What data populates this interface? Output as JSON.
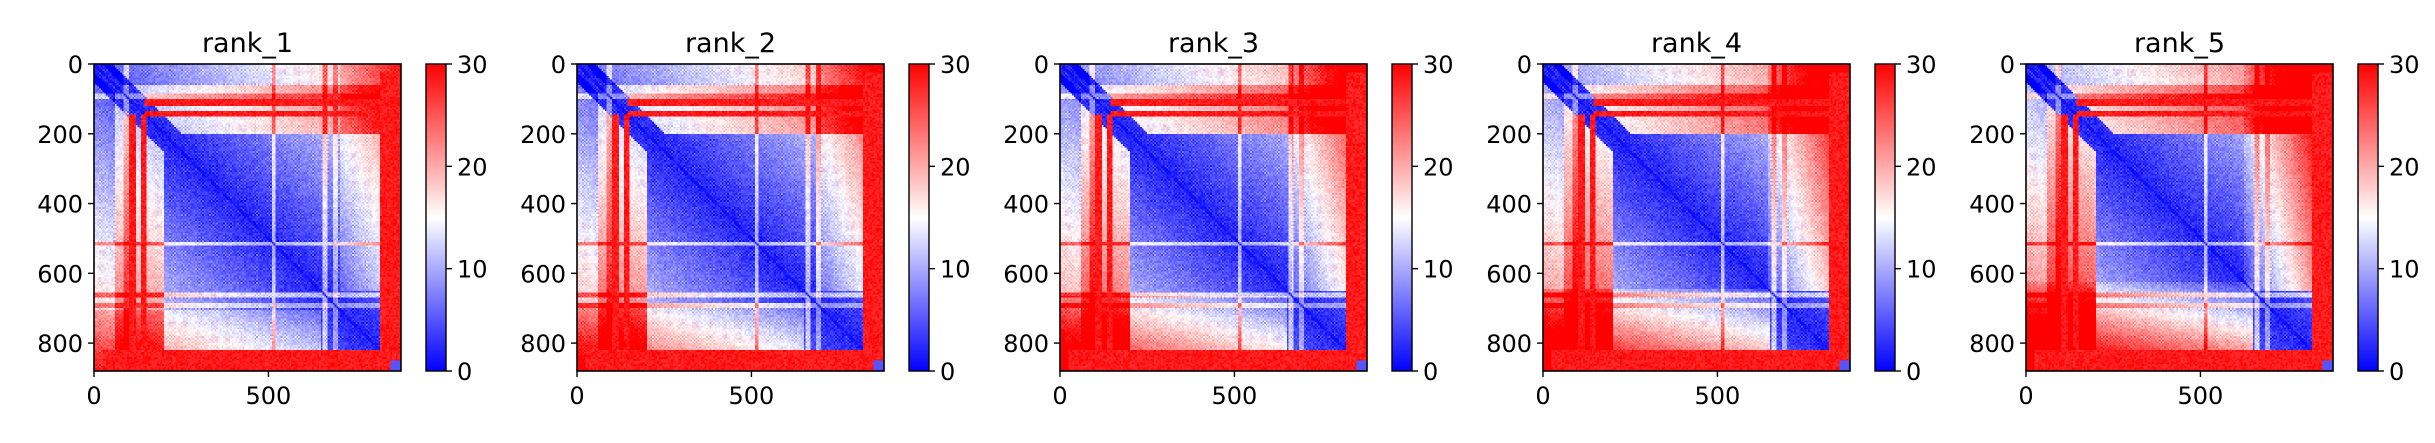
{
  "chart_data": [
    {
      "type": "heatmap",
      "title": "rank_1",
      "xticks": [
        "0",
        "500"
      ],
      "yticks": [
        "0",
        "200",
        "400",
        "600",
        "800"
      ],
      "x_range": [
        0,
        880
      ],
      "y_range": [
        0,
        880
      ],
      "colorbar": {
        "ticks": [
          "0",
          "10",
          "20",
          "30"
        ],
        "range": [
          0,
          30
        ],
        "colormap": "bwr"
      }
    },
    {
      "type": "heatmap",
      "title": "rank_2",
      "xticks": [
        "0",
        "500"
      ],
      "yticks": [
        "0",
        "200",
        "400",
        "600",
        "800"
      ],
      "x_range": [
        0,
        880
      ],
      "y_range": [
        0,
        880
      ],
      "colorbar": {
        "ticks": [
          "0",
          "10",
          "20",
          "30"
        ],
        "range": [
          0,
          30
        ],
        "colormap": "bwr"
      }
    },
    {
      "type": "heatmap",
      "title": "rank_3",
      "xticks": [
        "0",
        "500"
      ],
      "yticks": [
        "0",
        "200",
        "400",
        "600",
        "800"
      ],
      "x_range": [
        0,
        880
      ],
      "y_range": [
        0,
        880
      ],
      "colorbar": {
        "ticks": [
          "0",
          "10",
          "20",
          "30"
        ],
        "range": [
          0,
          30
        ],
        "colormap": "bwr"
      }
    },
    {
      "type": "heatmap",
      "title": "rank_4",
      "xticks": [
        "0",
        "500"
      ],
      "yticks": [
        "0",
        "200",
        "400",
        "600",
        "800"
      ],
      "x_range": [
        0,
        880
      ],
      "y_range": [
        0,
        880
      ],
      "colorbar": {
        "ticks": [
          "0",
          "10",
          "20",
          "30"
        ],
        "range": [
          0,
          30
        ],
        "colormap": "bwr"
      }
    },
    {
      "type": "heatmap",
      "title": "rank_5",
      "xticks": [
        "0",
        "500"
      ],
      "yticks": [
        "0",
        "200",
        "400",
        "600",
        "800"
      ],
      "x_range": [
        0,
        880
      ],
      "y_range": [
        0,
        880
      ],
      "colorbar": {
        "ticks": [
          "0",
          "10",
          "20",
          "30"
        ],
        "range": [
          0,
          30
        ],
        "colormap": "bwr"
      }
    }
  ],
  "colors": {
    "low": "#0000ff",
    "mid": "#ffffff",
    "high": "#ff0000"
  }
}
